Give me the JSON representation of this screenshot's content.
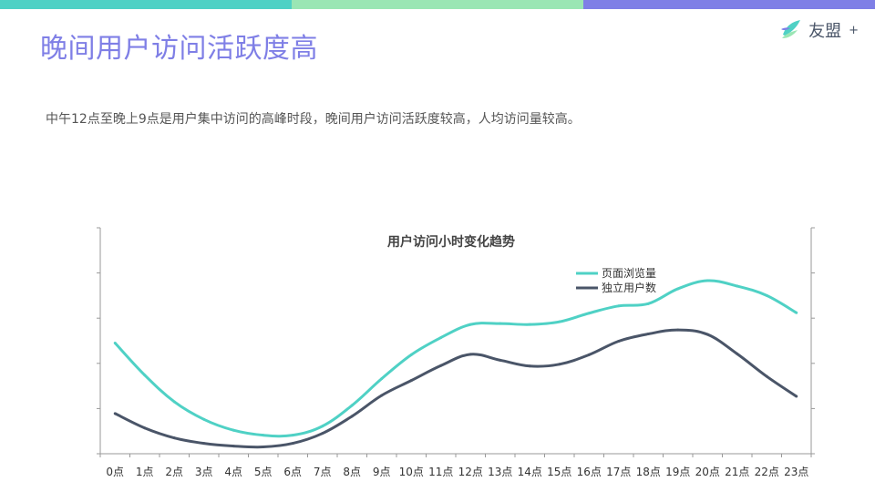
{
  "header": {
    "title": "晚间用户访问活跃度高",
    "subtitle": "中午12点至晚上9点是用户集中访问的高峰时段，晚间用户访问活跃度较高，人均访问量较高。"
  },
  "logo": {
    "name": "友盟",
    "plus": "+"
  },
  "colors": {
    "bar1": "#4fd1c5",
    "bar2": "#9ae6b4",
    "bar3": "#7f7fe6",
    "title": "#7f7fe6",
    "series_pv": "#4fd1c5",
    "series_uv": "#4a5568",
    "axis": "#999999"
  },
  "chart_data": {
    "type": "line",
    "title": "用户访问小时变化趋势",
    "legend_position": "top-right",
    "grid": false,
    "categories": [
      "0点",
      "1点",
      "2点",
      "3点",
      "4点",
      "5点",
      "6点",
      "7点",
      "8点",
      "9点",
      "10点",
      "11点",
      "12点",
      "13点",
      "14点",
      "15点",
      "16点",
      "17点",
      "18点",
      "19点",
      "20点",
      "21点",
      "22点",
      "23点"
    ],
    "ylim": [
      0,
      5
    ],
    "series": [
      {
        "name": "页面浏览量",
        "values": [
          2.45,
          1.74,
          1.15,
          0.76,
          0.52,
          0.41,
          0.41,
          0.61,
          1.07,
          1.66,
          2.19,
          2.57,
          2.86,
          2.88,
          2.86,
          2.92,
          3.11,
          3.27,
          3.32,
          3.65,
          3.83,
          3.71,
          3.5,
          3.12
        ]
      },
      {
        "name": "独立用户数",
        "values": [
          0.89,
          0.57,
          0.35,
          0.23,
          0.17,
          0.15,
          0.23,
          0.45,
          0.83,
          1.29,
          1.62,
          1.95,
          2.2,
          2.07,
          1.94,
          1.98,
          2.19,
          2.49,
          2.65,
          2.74,
          2.64,
          2.21,
          1.71,
          1.27
        ]
      }
    ]
  }
}
